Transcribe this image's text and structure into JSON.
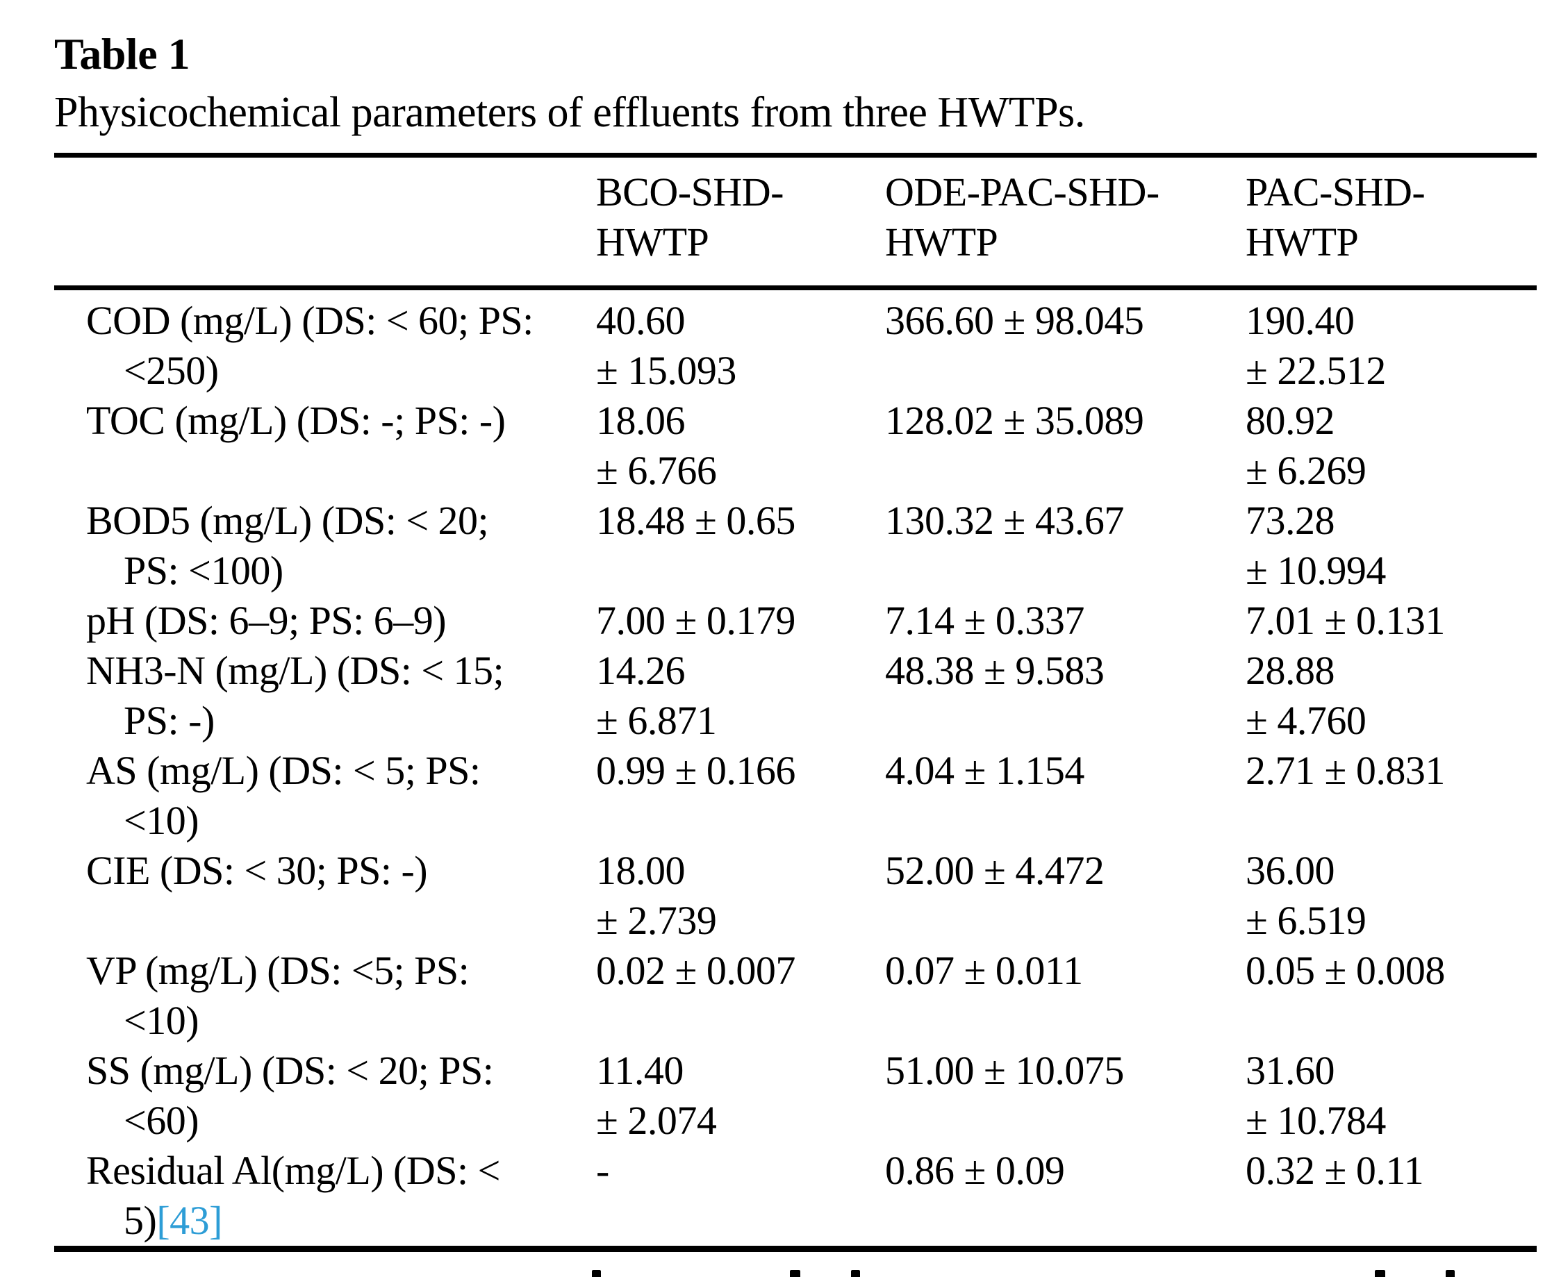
{
  "page": {
    "table_label": "Table 1",
    "caption": "Physicochemical parameters of effluents from three HWTPs."
  },
  "colors": {
    "text": "#000000",
    "citation_link": "#2d9dd6"
  },
  "table": {
    "header": {
      "parameter": "",
      "bco": "BCO-SHD-\nHWTP",
      "ode": "ODE-PAC-SHD-\nHWTP",
      "pac": "PAC-SHD-\nHWTP"
    },
    "rows": [
      {
        "param": "COD (mg/L) (DS: < 60; PS:\n<250)",
        "bco": "40.60\n± 15.093",
        "ode": "366.60 ± 98.045",
        "pac": "190.40\n± 22.512"
      },
      {
        "param": "TOC (mg/L) (DS: -; PS: -)",
        "bco": "18.06\n± 6.766",
        "ode": "128.02 ± 35.089",
        "pac": "80.92\n± 6.269"
      },
      {
        "param": "BOD5 (mg/L) (DS: < 20;\nPS: <100)",
        "bco": "18.48 ± 0.65",
        "ode": "130.32 ± 43.67",
        "pac": "73.28\n± 10.994"
      },
      {
        "param": "pH (DS: 6–9; PS: 6–9)",
        "bco": "7.00 ± 0.179",
        "ode": "7.14 ± 0.337",
        "pac": "7.01 ± 0.131"
      },
      {
        "param": "NH3-N (mg/L) (DS: < 15;\nPS: -)",
        "bco": "14.26\n± 6.871",
        "ode": "48.38 ± 9.583",
        "pac": "28.88\n± 4.760"
      },
      {
        "param": "AS (mg/L) (DS: < 5; PS:\n<10)",
        "bco": "0.99 ± 0.166",
        "ode": "4.04 ± 1.154",
        "pac": "2.71 ± 0.831"
      },
      {
        "param": "CIE (DS: < 30; PS: -)",
        "bco": "18.00\n± 2.739",
        "ode": "52.00 ± 4.472",
        "pac": "36.00\n± 6.519"
      },
      {
        "param": "VP (mg/L) (DS: <5; PS:\n<10)",
        "bco": "0.02 ± 0.007",
        "ode": "0.07 ± 0.011",
        "pac": "0.05 ± 0.008"
      },
      {
        "param": "SS (mg/L) (DS: < 20; PS:\n<60)",
        "bco": "11.40\n± 2.074",
        "ode": "51.00 ± 10.075",
        "pac": "31.60\n± 10.784"
      },
      {
        "param": "Residual Al(mg/L) (DS: <\n5)",
        "citation": "[43]",
        "bco": "-",
        "ode": "0.86 ± 0.09",
        "pac": "0.32 ± 0.11"
      }
    ]
  }
}
